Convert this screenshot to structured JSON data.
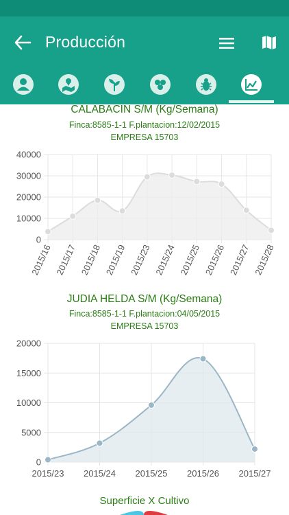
{
  "header": {
    "title": "Producción",
    "colors": {
      "primary": "#17a08a",
      "status_bar": "#0e8c78",
      "accent_text": "#2a7d14"
    }
  },
  "tabs": [
    {
      "icon": "person-icon",
      "active": false
    },
    {
      "icon": "map-location-icon",
      "active": false
    },
    {
      "icon": "plant-icon",
      "active": false
    },
    {
      "icon": "seeds-icon",
      "active": false
    },
    {
      "icon": "bug-icon",
      "active": false
    },
    {
      "icon": "line-chart-icon",
      "active": true
    }
  ],
  "chart_data": [
    {
      "type": "area",
      "title": "CALABACIN S/M (Kg/Semana)",
      "subtitle_1": "Finca:8585-1-1 F.plantacion:12/02/2015",
      "subtitle_2": "EMPRESA 15703",
      "categories": [
        "2015/16",
        "2015/17",
        "2015/18",
        "2015/19",
        "2015/23",
        "2015/24",
        "2015/25",
        "2015/26",
        "2015/27",
        "2015/28"
      ],
      "values": [
        3800,
        11000,
        18500,
        13500,
        29500,
        30300,
        27300,
        26100,
        13800,
        4400
      ],
      "y_ticks": [
        "0",
        "10000",
        "20000",
        "30000",
        "40000"
      ],
      "ylim": [
        0,
        40000
      ],
      "grid": true,
      "color": "#dcdcdc"
    },
    {
      "type": "area",
      "title": "JUDIA HELDA S/M (Kg/Semana)",
      "subtitle_1": "Finca:8585-1-1 F.plantacion:04/05/2015",
      "subtitle_2": "EMPRESA 15703",
      "categories": [
        "2015/23",
        "2015/24",
        "2015/25",
        "2015/26",
        "2015/27"
      ],
      "values": [
        400,
        3200,
        9600,
        17400,
        2200
      ],
      "y_ticks": [
        "0",
        "5000",
        "10000",
        "15000",
        "20000"
      ],
      "ylim": [
        0,
        20000
      ],
      "grid": true,
      "color": "#9bb6c6"
    }
  ],
  "pie": {
    "title": "Superficie X Cultivo"
  }
}
